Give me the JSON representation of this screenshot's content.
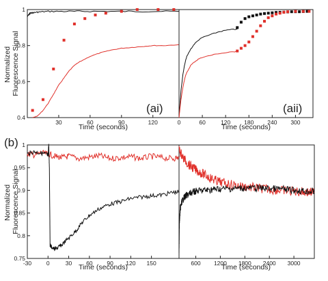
{
  "chart_data": [
    {
      "panel": "ai",
      "type": "line",
      "label": "(ai)",
      "xlabel": "Time (seconds)",
      "ylabel": "Normalized Fluorescence Signal",
      "xlim": [
        0,
        145
      ],
      "ylim": [
        0.4,
        1.0
      ],
      "xticks": [
        "30",
        "60",
        "90",
        "120"
      ],
      "yticks": [
        "0.4",
        "0.6",
        "0.8",
        "1"
      ],
      "series": [
        {
          "color": "#111111",
          "style": "line",
          "x": [
            0,
            1,
            2,
            3,
            5,
            8,
            12,
            20,
            30,
            45,
            60,
            80,
            100,
            120,
            145
          ],
          "y": [
            0.96,
            0.97,
            0.975,
            0.98,
            0.982,
            0.985,
            0.987,
            0.99,
            0.99,
            0.99,
            0.99,
            0.99,
            0.99,
            0.99,
            0.99
          ]
        },
        {
          "color": "#e0302a",
          "style": "line",
          "x": [
            5,
            10,
            15,
            20,
            25,
            30,
            35,
            40,
            45,
            50,
            60,
            70,
            80,
            90,
            100,
            110,
            120,
            130,
            145
          ],
          "y": [
            0.4,
            0.41,
            0.44,
            0.48,
            0.53,
            0.58,
            0.62,
            0.66,
            0.69,
            0.71,
            0.74,
            0.76,
            0.775,
            0.785,
            0.79,
            0.795,
            0.8,
            0.8,
            0.805
          ]
        },
        {
          "color": "#e0302a",
          "style": "markers",
          "x": [
            5,
            15,
            25,
            35,
            45,
            55,
            65,
            75,
            90,
            105,
            125,
            140
          ],
          "y": [
            0.44,
            0.5,
            0.67,
            0.83,
            0.92,
            0.95,
            0.97,
            0.98,
            0.99,
            1.0,
            1.0,
            1.0
          ]
        }
      ]
    },
    {
      "panel": "aii",
      "type": "line",
      "label": "(aii)",
      "xlabel": "Time (seconds)",
      "xlim": [
        0,
        345
      ],
      "ylim": [
        0.4,
        1.0
      ],
      "xticks": [
        "0",
        "60",
        "120",
        "180",
        "240",
        "300"
      ],
      "series": [
        {
          "color": "#111111",
          "style": "line",
          "x": [
            0,
            5,
            10,
            15,
            20,
            30,
            40,
            50,
            60,
            80,
            100,
            120,
            140,
            150
          ],
          "y": [
            0.4,
            0.55,
            0.64,
            0.7,
            0.74,
            0.78,
            0.81,
            0.83,
            0.845,
            0.86,
            0.875,
            0.885,
            0.89,
            0.89
          ]
        },
        {
          "color": "#111111",
          "style": "markers",
          "x": [
            150,
            160,
            170,
            180,
            190,
            200,
            210,
            220,
            230,
            240,
            250,
            260,
            270,
            280,
            290,
            300,
            310,
            320,
            330
          ],
          "y": [
            0.9,
            0.93,
            0.95,
            0.96,
            0.965,
            0.97,
            0.975,
            0.978,
            0.98,
            0.982,
            0.984,
            0.985,
            0.986,
            0.987,
            0.988,
            0.988,
            0.988,
            0.989,
            0.99
          ]
        },
        {
          "color": "#e0302a",
          "style": "line",
          "x": [
            0,
            5,
            10,
            15,
            20,
            30,
            40,
            50,
            60,
            80,
            100,
            120,
            140,
            150
          ],
          "y": [
            0.4,
            0.5,
            0.57,
            0.62,
            0.65,
            0.69,
            0.71,
            0.725,
            0.735,
            0.745,
            0.755,
            0.76,
            0.765,
            0.77
          ]
        },
        {
          "color": "#e0302a",
          "style": "markers",
          "x": [
            150,
            160,
            170,
            180,
            190,
            200,
            210,
            220,
            230,
            240,
            250,
            260,
            270,
            280,
            300,
            320,
            335
          ],
          "y": [
            0.77,
            0.785,
            0.8,
            0.82,
            0.85,
            0.88,
            0.91,
            0.935,
            0.955,
            0.965,
            0.975,
            0.98,
            0.985,
            0.988,
            0.99,
            0.99,
            0.99
          ]
        }
      ]
    },
    {
      "panel": "b",
      "type": "line",
      "label": "(b)",
      "xlabel": "Time (seconds)",
      "ylabel": "Normalized Fluorescence Signal",
      "ylim": [
        0.75,
        1.0
      ],
      "yticks": [
        "0.75",
        "0.8",
        "0.85",
        "0.9",
        "0.95",
        "1"
      ],
      "segments": [
        {
          "xlim": [
            -30,
            190
          ],
          "xticks": [
            "-30",
            "0",
            "30",
            "60",
            "90",
            "120",
            "150"
          ],
          "series": [
            {
              "color": "#e0302a",
              "style": "line",
              "x": [
                -30,
                -20,
                -10,
                0,
                10,
                20,
                30,
                45,
                60,
                75,
                90,
                105,
                120,
                135,
                150,
                165,
                180,
                190
              ],
              "y": [
                0.98,
                0.978,
                0.982,
                0.98,
                0.975,
                0.972,
                0.975,
                0.97,
                0.973,
                0.976,
                0.97,
                0.972,
                0.974,
                0.97,
                0.975,
                0.972,
                0.97,
                0.972
              ]
            },
            {
              "color": "#111111",
              "style": "line",
              "x": [
                -30,
                -20,
                -10,
                -2,
                0,
                1,
                2,
                3,
                5,
                10,
                15,
                20,
                30,
                40,
                50,
                60,
                75,
                90,
                105,
                120,
                135,
                150,
                165,
                180,
                190
              ],
              "y": [
                0.98,
                0.985,
                0.982,
                0.98,
                0.975,
                1.0,
                0.95,
                0.78,
                0.775,
                0.77,
                0.775,
                0.78,
                0.795,
                0.81,
                0.83,
                0.845,
                0.86,
                0.87,
                0.875,
                0.882,
                0.885,
                0.888,
                0.89,
                0.895,
                0.897
              ]
            }
          ]
        },
        {
          "xlim": [
            190,
            3500
          ],
          "xticks": [
            "600",
            "1200",
            "1800",
            "2400",
            "3000"
          ],
          "series": [
            {
              "color": "#e0302a",
              "style": "line",
              "x": [
                190,
                300,
                450,
                600,
                800,
                1000,
                1200,
                1500,
                1800,
                2100,
                2400,
                2700,
                3000,
                3300,
                3500
              ],
              "y": [
                0.99,
                0.97,
                0.955,
                0.945,
                0.935,
                0.925,
                0.918,
                0.912,
                0.908,
                0.905,
                0.902,
                0.9,
                0.898,
                0.896,
                0.895
              ]
            },
            {
              "color": "#111111",
              "style": "line",
              "x": [
                190,
                200,
                220,
                260,
                320,
                400,
                500,
                600,
                800,
                1000,
                1200,
                1500,
                1800,
                2100,
                2400,
                2700,
                3000,
                3300,
                3500
              ],
              "y": [
                0.77,
                0.83,
                0.86,
                0.875,
                0.885,
                0.89,
                0.895,
                0.898,
                0.9,
                0.902,
                0.903,
                0.904,
                0.905,
                0.905,
                0.904,
                0.903,
                0.9,
                0.898,
                0.897
              ]
            }
          ]
        }
      ]
    }
  ]
}
